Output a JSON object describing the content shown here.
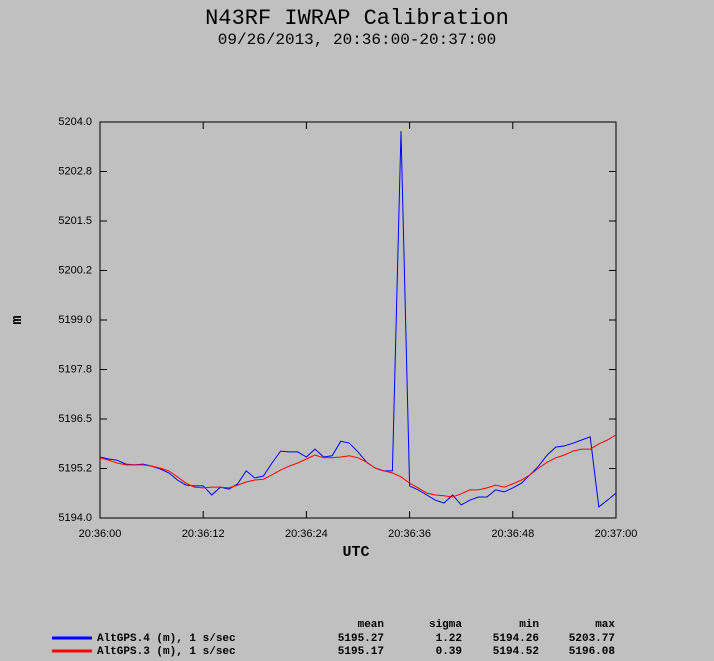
{
  "chart_data": {
    "type": "line",
    "title": "N43RF IWRAP Calibration",
    "subtitle": "09/26/2013, 20:36:00-20:37:00",
    "xlabel": "UTC",
    "ylabel": "m",
    "x": [
      "20:36:00",
      "20:36:01",
      "20:36:02",
      "20:36:03",
      "20:36:04",
      "20:36:05",
      "20:36:06",
      "20:36:07",
      "20:36:08",
      "20:36:09",
      "20:36:10",
      "20:36:11",
      "20:36:12",
      "20:36:13",
      "20:36:14",
      "20:36:15",
      "20:36:16",
      "20:36:17",
      "20:36:18",
      "20:36:19",
      "20:36:20",
      "20:36:21",
      "20:36:22",
      "20:36:23",
      "20:36:24",
      "20:36:25",
      "20:36:26",
      "20:36:27",
      "20:36:28",
      "20:36:29",
      "20:36:30",
      "20:36:31",
      "20:36:32",
      "20:36:33",
      "20:36:34",
      "20:36:35",
      "20:36:36",
      "20:36:37",
      "20:36:38",
      "20:36:39",
      "20:36:40",
      "20:36:41",
      "20:36:42",
      "20:36:43",
      "20:36:44",
      "20:36:45",
      "20:36:46",
      "20:36:47",
      "20:36:48",
      "20:36:49",
      "20:36:50",
      "20:36:51",
      "20:36:52",
      "20:36:53",
      "20:36:54",
      "20:36:55",
      "20:36:56",
      "20:36:57",
      "20:36:58",
      "20:36:59",
      "20:37:00"
    ],
    "xlim": [
      "20:36:00",
      "20:37:00"
    ],
    "xticks": [
      "20:36:00",
      "20:36:12",
      "20:36:24",
      "20:36:36",
      "20:36:48",
      "20:37:00"
    ],
    "ylim": [
      5194,
      5204
    ],
    "yticks": [
      {
        "value": 5194,
        "label": "5194.0"
      },
      {
        "value": 5195.25,
        "label": "5195.2"
      },
      {
        "value": 5196.5,
        "label": "5196.5"
      },
      {
        "value": 5197.75,
        "label": "5197.8"
      },
      {
        "value": 5199,
        "label": "5199.0"
      },
      {
        "value": 5200.25,
        "label": "5200.2"
      },
      {
        "value": 5201.5,
        "label": "5201.5"
      },
      {
        "value": 5202.75,
        "label": "5202.8"
      },
      {
        "value": 5204,
        "label": "5204.0"
      }
    ],
    "stat_headers": [
      "mean",
      "sigma",
      "min",
      "max"
    ],
    "series": [
      {
        "name": "AltGPS.4 (m), 1 s/sec",
        "color": "#0000ff",
        "values": [
          5195.54,
          5195.49,
          5195.46,
          5195.36,
          5195.34,
          5195.36,
          5195.31,
          5195.24,
          5195.14,
          5194.96,
          5194.83,
          5194.81,
          5194.81,
          5194.58,
          5194.78,
          5194.73,
          5194.86,
          5195.19,
          5195.01,
          5195.06,
          5195.39,
          5195.69,
          5195.67,
          5195.67,
          5195.54,
          5195.74,
          5195.54,
          5195.57,
          5195.94,
          5195.89,
          5195.67,
          5195.41,
          5195.26,
          5195.19,
          5195.19,
          5203.77,
          5194.81,
          5194.71,
          5194.58,
          5194.45,
          5194.38,
          5194.58,
          5194.33,
          5194.45,
          5194.53,
          5194.53,
          5194.71,
          5194.66,
          5194.76,
          5194.88,
          5195.09,
          5195.31,
          5195.59,
          5195.79,
          5195.82,
          5195.89,
          5195.97,
          5196.05,
          5194.28,
          5194.45,
          5194.63
        ],
        "stats": [
          5195.27,
          1.22,
          5194.26,
          5203.77
        ]
      },
      {
        "name": "AltGPS.3 (m), 1 s/sec",
        "color": "#ff0000",
        "values": [
          5195.52,
          5195.46,
          5195.39,
          5195.34,
          5195.34,
          5195.34,
          5195.31,
          5195.26,
          5195.19,
          5195.04,
          5194.88,
          5194.78,
          5194.76,
          5194.78,
          5194.78,
          5194.76,
          5194.83,
          5194.91,
          5194.96,
          5194.98,
          5195.09,
          5195.21,
          5195.31,
          5195.39,
          5195.49,
          5195.59,
          5195.52,
          5195.52,
          5195.54,
          5195.57,
          5195.52,
          5195.41,
          5195.26,
          5195.19,
          5195.14,
          5195.04,
          5194.88,
          5194.76,
          5194.63,
          5194.58,
          5194.56,
          5194.53,
          5194.61,
          5194.71,
          5194.71,
          5194.76,
          5194.83,
          5194.78,
          5194.86,
          5194.96,
          5195.09,
          5195.26,
          5195.41,
          5195.52,
          5195.59,
          5195.69,
          5195.74,
          5195.74,
          5195.87,
          5195.97,
          5196.1
        ],
        "stats": [
          5195.17,
          0.39,
          5194.52,
          5196.08
        ]
      }
    ]
  }
}
